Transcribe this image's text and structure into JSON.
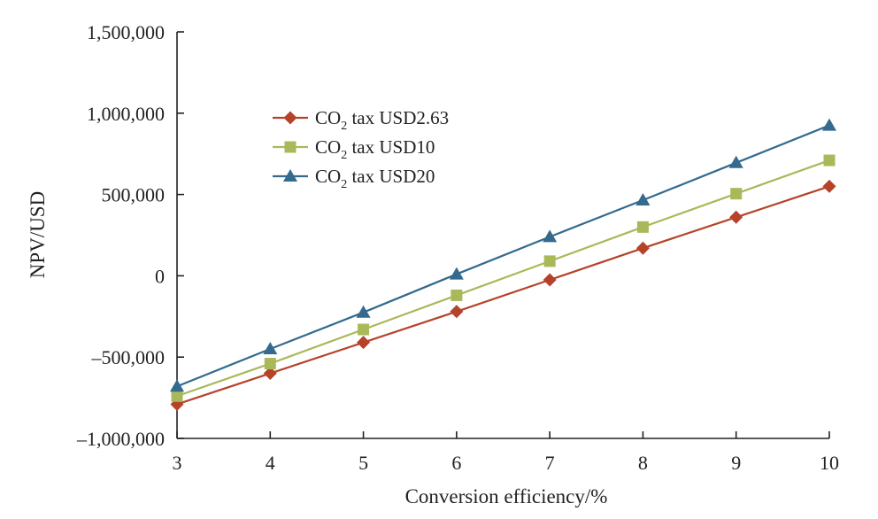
{
  "chart_data": {
    "type": "line",
    "title": "",
    "xlabel": "Conversion efficiency/%",
    "ylabel": "NPV/USD",
    "x": [
      3,
      4,
      5,
      6,
      7,
      8,
      9,
      10
    ],
    "xlim": [
      3,
      10
    ],
    "ylim": [
      -1000000,
      1500000
    ],
    "x_ticks": [
      "3",
      "4",
      "5",
      "6",
      "7",
      "8",
      "9",
      "10"
    ],
    "y_ticks": [
      {
        "value": -1000000,
        "label": "–1,000,000"
      },
      {
        "value": -500000,
        "label": "–500,000"
      },
      {
        "value": 0,
        "label": "0"
      },
      {
        "value": 500000,
        "label": "500,000"
      },
      {
        "value": 1000000,
        "label": "1,000,000"
      },
      {
        "value": 1500000,
        "label": "1,500,000"
      }
    ],
    "grid": false,
    "legend_position": "upper-left",
    "series": [
      {
        "name": "CO2 tax USD2.63",
        "legend": {
          "prefix": "CO",
          "sub": "2",
          "suffix": " tax USD2.63"
        },
        "marker": "diamond",
        "color": "#B5432A",
        "values": [
          -790000,
          -600000,
          -410000,
          -220000,
          -25000,
          170000,
          360000,
          550000
        ]
      },
      {
        "name": "CO2 tax USD10",
        "legend": {
          "prefix": "CO",
          "sub": "2",
          "suffix": " tax USD10"
        },
        "marker": "square",
        "color": "#A9B95A",
        "values": [
          -740000,
          -540000,
          -330000,
          -120000,
          90000,
          300000,
          505000,
          710000
        ]
      },
      {
        "name": "CO2 tax USD20",
        "legend": {
          "prefix": "CO",
          "sub": "2",
          "suffix": " tax USD20"
        },
        "marker": "triangle",
        "color": "#336A8E",
        "values": [
          -680000,
          -450000,
          -225000,
          10000,
          240000,
          465000,
          695000,
          925000
        ]
      }
    ]
  }
}
